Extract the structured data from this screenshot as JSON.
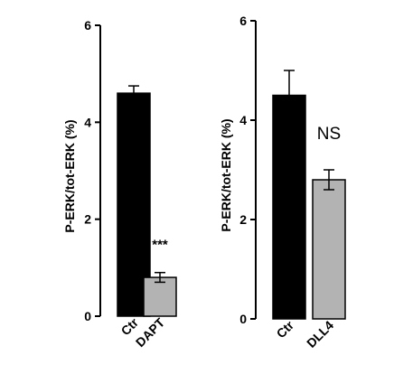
{
  "chart_data": [
    {
      "type": "bar",
      "ylabel": "P-ERK/tot-ERK (%)",
      "ylim": [
        0,
        6
      ],
      "yticks": [
        0,
        2,
        4,
        6
      ],
      "categories": [
        "Ctr",
        "DAPT"
      ],
      "values": [
        4.6,
        0.8
      ],
      "errors": [
        0.15,
        0.1
      ],
      "bar_colors": [
        "#000000",
        "#b3b3b3"
      ],
      "annotation": "***",
      "annotation_category": "DAPT"
    },
    {
      "type": "bar",
      "ylabel": "P-ERK/tot-ERK (%)",
      "ylim": [
        0,
        6
      ],
      "yticks": [
        0,
        2,
        4,
        6
      ],
      "categories": [
        "Ctr",
        "DLL4"
      ],
      "values": [
        4.5,
        2.8
      ],
      "errors": [
        0.5,
        0.2
      ],
      "bar_colors": [
        "#000000",
        "#b3b3b3"
      ],
      "annotation": "NS",
      "annotation_category": "DLL4"
    }
  ]
}
